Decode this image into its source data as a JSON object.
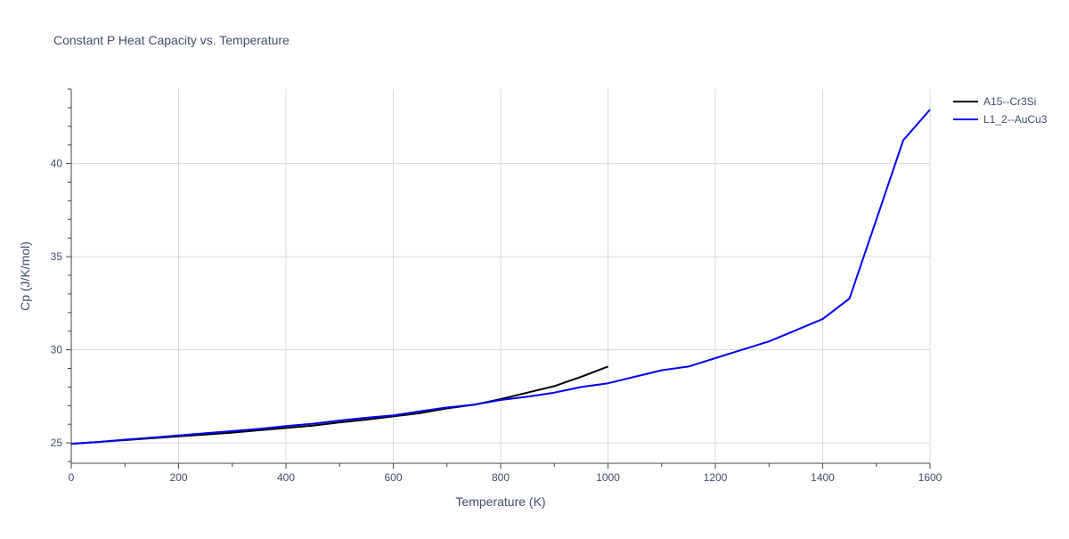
{
  "chart_data": {
    "type": "line",
    "title": "Constant P Heat Capacity vs. Temperature",
    "xlabel": "Temperature (K)",
    "ylabel": "Cp (J/K/mol)",
    "xlim": [
      0,
      1600
    ],
    "ylim": [
      24,
      44
    ],
    "xticks": [
      0,
      200,
      400,
      600,
      800,
      1000,
      1200,
      1400,
      1600
    ],
    "yticks": [
      25,
      30,
      35,
      40
    ],
    "grid": true,
    "legend_position": "top-right",
    "series": [
      {
        "name": "A15--Cr3Si",
        "color": "#000000",
        "x": [
          0,
          50,
          100,
          150,
          200,
          250,
          300,
          350,
          400,
          450,
          500,
          550,
          600,
          650,
          700,
          750,
          800,
          850,
          900,
          950,
          1000
        ],
        "y": [
          24.95,
          25.05,
          25.15,
          25.25,
          25.35,
          25.45,
          25.55,
          25.68,
          25.8,
          25.93,
          26.1,
          26.25,
          26.42,
          26.6,
          26.85,
          27.05,
          27.35,
          27.7,
          28.05,
          28.55,
          29.1
        ]
      },
      {
        "name": "L1_2--AuCu3",
        "color": "#0000ee",
        "x": [
          0,
          50,
          100,
          150,
          200,
          250,
          300,
          350,
          400,
          450,
          500,
          550,
          600,
          650,
          700,
          750,
          800,
          850,
          900,
          950,
          1000,
          1050,
          1100,
          1150,
          1200,
          1250,
          1300,
          1350,
          1400,
          1450,
          1500,
          1550,
          1600
        ],
        "y": [
          24.95,
          25.05,
          25.17,
          25.28,
          25.4,
          25.52,
          25.63,
          25.75,
          25.9,
          26.03,
          26.2,
          26.35,
          26.48,
          26.7,
          26.9,
          27.05,
          27.3,
          27.48,
          27.7,
          28.0,
          28.2,
          28.55,
          28.9,
          29.1,
          29.55,
          30.0,
          30.45,
          31.05,
          31.65,
          32.75,
          37.0,
          41.25,
          42.9
        ]
      }
    ]
  }
}
